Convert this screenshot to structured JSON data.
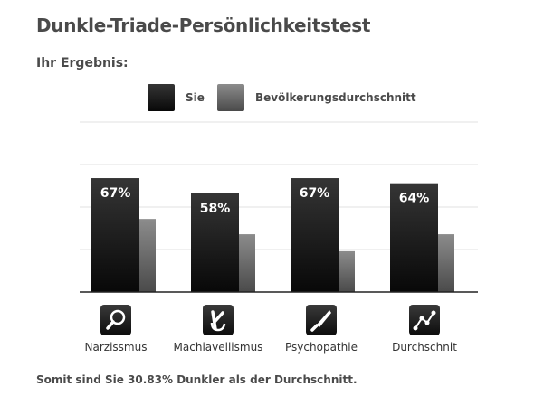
{
  "title": "Dunkle-Triade-Persönlichkeitstest",
  "subtitle": "Ihr Ergebnis:",
  "footer": "Somit sind Sie 30.83% Dunkler als der Durchschnitt.",
  "colors": {
    "you_top": "#353535",
    "you_bottom": "#080808",
    "avg_top": "#8c8c8c",
    "avg_bottom": "#4a4a4a",
    "grid": "#e2e2e2",
    "baseline": "#222222"
  },
  "icons": [
    "magnifier-icon",
    "crossed-fingers-icon",
    "knife-icon",
    "line-graph-icon"
  ],
  "chart_data": {
    "type": "bar",
    "categories": [
      "Narzissmus",
      "Machiavellismus",
      "Psychopathie",
      "Durchschnit"
    ],
    "series": [
      {
        "name": "Sie",
        "values": [
          67,
          58,
          67,
          64
        ],
        "labels": [
          "67%",
          "58%",
          "67%",
          "64%"
        ]
      },
      {
        "name": "Bevölkerungsdurchschnitt",
        "values": [
          43,
          34,
          24,
          34
        ]
      }
    ],
    "ylim": [
      0,
      100
    ],
    "grid": true,
    "legend": "top"
  }
}
